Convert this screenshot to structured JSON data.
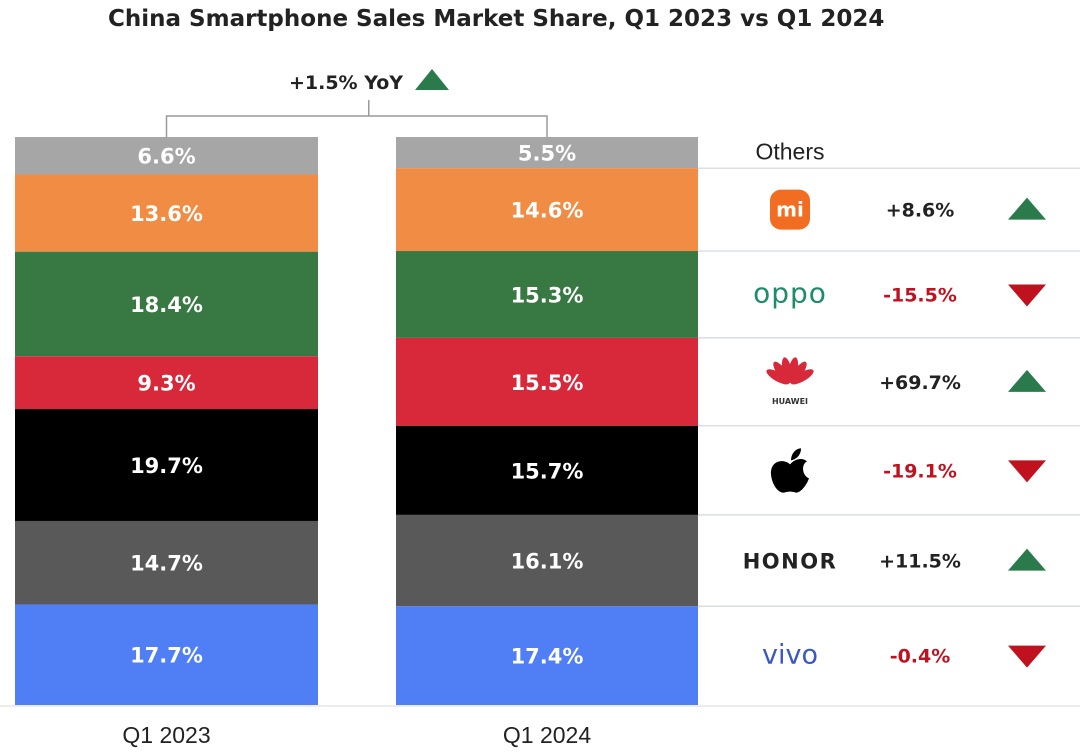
{
  "chart_data": {
    "type": "bar",
    "stacked": true,
    "normalized": true,
    "title": "China Smartphone Sales Market Share, Q1 2023 vs Q1 2024",
    "categories": [
      "Q1 2023",
      "Q1 2024"
    ],
    "series": [
      {
        "name": "Others",
        "color": "#a6a6a6",
        "values": [
          6.6,
          5.5
        ],
        "labels": [
          "6.6%",
          "5.5%"
        ]
      },
      {
        "name": "Xiaomi",
        "logo": "mi-logo",
        "color": "#f08c43",
        "values": [
          13.6,
          14.6
        ],
        "labels": [
          "13.6%",
          "14.6%"
        ],
        "yoy": "+8.6%",
        "trend": "up"
      },
      {
        "name": "OPPO",
        "logo": "oppo",
        "color": "#387842",
        "values": [
          18.4,
          15.3
        ],
        "labels": [
          "18.4%",
          "15.3%"
        ],
        "yoy": "-15.5%",
        "trend": "down"
      },
      {
        "name": "HUAWEI",
        "logo": "huawei-logo",
        "color": "#d8293a",
        "values": [
          9.3,
          15.5
        ],
        "labels": [
          "9.3%",
          "15.5%"
        ],
        "yoy": "+69.7%",
        "trend": "up"
      },
      {
        "name": "Apple",
        "logo": "apple-logo",
        "color": "#000000",
        "values": [
          19.7,
          15.7
        ],
        "labels": [
          "19.7%",
          "15.7%"
        ],
        "yoy": "-19.1%",
        "trend": "down"
      },
      {
        "name": "HONOR",
        "logo": "honor",
        "color": "#595959",
        "values": [
          14.7,
          16.1
        ],
        "labels": [
          "14.7%",
          "16.1%"
        ],
        "yoy": "+11.5%",
        "trend": "up"
      },
      {
        "name": "vivo",
        "logo": "vivo",
        "color": "#4f7ef5",
        "values": [
          17.7,
          17.4
        ],
        "labels": [
          "17.7%",
          "17.4%"
        ],
        "yoy": "-0.4%",
        "trend": "down"
      }
    ],
    "annotation": "+1.5% YoY",
    "annotation_trend": "up",
    "others_label": "Others",
    "colors": {
      "up": "#2b7a4b",
      "down": "#c0111f",
      "up_text": "#222222",
      "down_text": "#c0111f"
    },
    "grid": false,
    "legend": "right"
  }
}
